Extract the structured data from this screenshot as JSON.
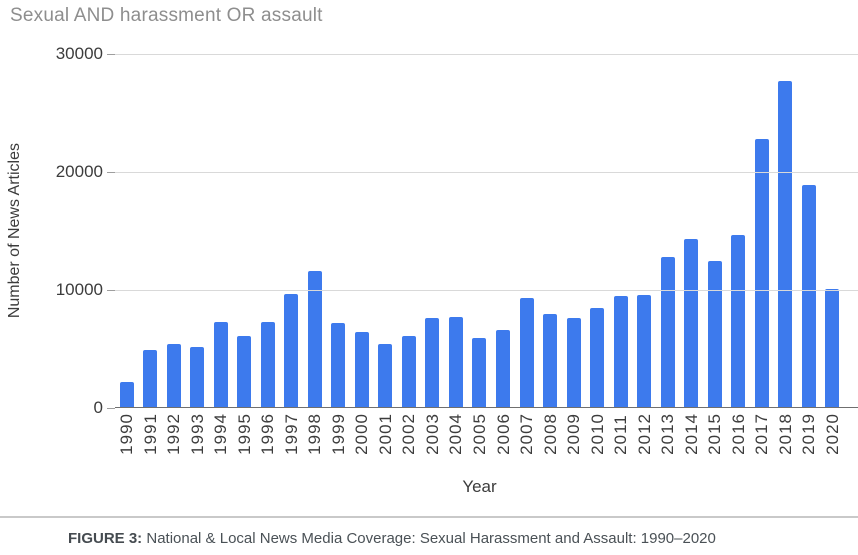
{
  "chart_data": {
    "type": "bar",
    "title": "Sexual AND harassment OR assault",
    "xlabel": "Year",
    "ylabel": "Number of News Articles",
    "ylim": [
      0,
      30000
    ],
    "yticks": [
      0,
      10000,
      20000,
      30000
    ],
    "grid": true,
    "legend_position": "none",
    "bar_color": "#3d7aed",
    "categories": [
      "1990",
      "1991",
      "1992",
      "1993",
      "1994",
      "1995",
      "1996",
      "1997",
      "1998",
      "1999",
      "2000",
      "2001",
      "2002",
      "2003",
      "2004",
      "2005",
      "2006",
      "2007",
      "2008",
      "2009",
      "2010",
      "2011",
      "2012",
      "2013",
      "2014",
      "2015",
      "2016",
      "2017",
      "2018",
      "2019",
      "2020"
    ],
    "values": [
      2200,
      4900,
      5400,
      5200,
      7300,
      6100,
      7300,
      9700,
      11600,
      7200,
      6400,
      5400,
      6100,
      7600,
      7700,
      5900,
      6600,
      9300,
      8000,
      7600,
      8500,
      9500,
      9600,
      12800,
      14300,
      12500,
      14700,
      22800,
      27700,
      18900,
      10100
    ]
  },
  "caption": {
    "label": "FIGURE 3:",
    "text": " National & Local News Media Coverage: Sexual Harassment and Assault: 1990–2020"
  }
}
